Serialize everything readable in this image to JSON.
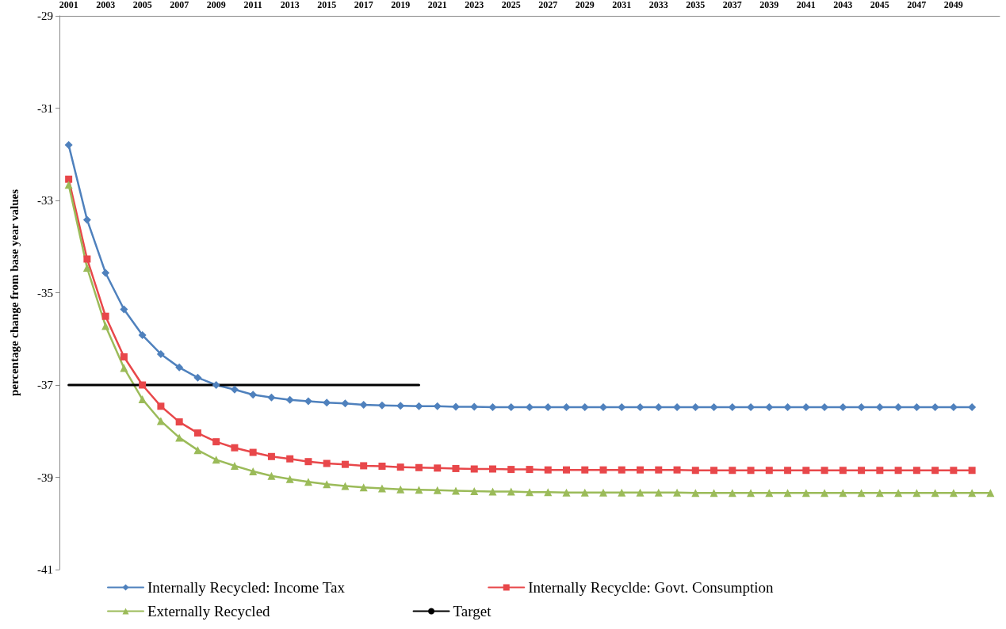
{
  "chart_data": {
    "type": "line",
    "ylabel": "percentage change from base year values",
    "categories": [
      "2001",
      null,
      "2003",
      null,
      "2005",
      null,
      "2007",
      null,
      "2009",
      null,
      "2011",
      null,
      "2013",
      null,
      "2015",
      null,
      "2017",
      null,
      "2019",
      null,
      "2021",
      null,
      "2023",
      null,
      "2025",
      null,
      "2027",
      null,
      "2029",
      null,
      "2031",
      null,
      "2033",
      null,
      "2035",
      null,
      "2037",
      null,
      "2039",
      null,
      "2041",
      null,
      "2043",
      null,
      "2045",
      null,
      "2047",
      null,
      "2049",
      null,
      null
    ],
    "ylim": [
      -41,
      -29
    ],
    "yticks": [
      -41,
      -39,
      -37,
      -35,
      -33,
      -31,
      -29
    ],
    "legend": "bottom",
    "line_style": "solid",
    "series": [
      {
        "name": "Internally Recycled: Income Tax",
        "color": "#4f81bd",
        "marker": "diamond",
        "values": [
          -31.8,
          -33.42,
          -34.57,
          -35.36,
          -35.92,
          -36.33,
          -36.62,
          -36.84,
          -37.0,
          -37.1,
          -37.21,
          -37.27,
          -37.32,
          -37.35,
          -37.38,
          -37.4,
          -37.43,
          -37.44,
          -37.45,
          -37.46,
          -37.46,
          -37.47,
          -37.47,
          -37.48,
          -37.48,
          -37.48,
          -37.48,
          -37.48,
          -37.48,
          -37.48,
          -37.48,
          -37.48,
          -37.48,
          -37.48,
          -37.48,
          -37.48,
          -37.48,
          -37.48,
          -37.48,
          -37.48,
          -37.48,
          -37.48,
          -37.48,
          -37.48,
          -37.48,
          -37.48,
          -37.48,
          -37.48,
          -37.48,
          -37.48,
          null
        ]
      },
      {
        "name": "Internally Recyclde: Govt. Consumption",
        "color": "#e8474a",
        "marker": "square",
        "values": [
          -32.54,
          -34.27,
          -35.51,
          -36.39,
          -37.0,
          -37.46,
          -37.8,
          -38.04,
          -38.23,
          -38.36,
          -38.46,
          -38.55,
          -38.6,
          -38.66,
          -38.7,
          -38.72,
          -38.75,
          -38.76,
          -38.78,
          -38.79,
          -38.8,
          -38.81,
          -38.82,
          -38.82,
          -38.83,
          -38.83,
          -38.84,
          -38.84,
          -38.84,
          -38.84,
          -38.84,
          -38.84,
          -38.84,
          -38.84,
          -38.85,
          -38.85,
          -38.85,
          -38.85,
          -38.85,
          -38.85,
          -38.85,
          -38.85,
          -38.85,
          -38.85,
          -38.85,
          -38.85,
          -38.85,
          -38.85,
          -38.85,
          -38.85,
          null
        ]
      },
      {
        "name": "Externally Recycled",
        "color": "#9bbb59",
        "marker": "triangle",
        "values": [
          -32.66,
          -34.46,
          -35.72,
          -36.63,
          -37.31,
          -37.78,
          -38.14,
          -38.41,
          -38.62,
          -38.75,
          -38.87,
          -38.97,
          -39.04,
          -39.1,
          -39.15,
          -39.19,
          -39.22,
          -39.24,
          -39.26,
          -39.27,
          -39.28,
          -39.29,
          -39.3,
          -39.31,
          -39.31,
          -39.32,
          -39.32,
          -39.33,
          -39.33,
          -39.33,
          -39.33,
          -39.33,
          -39.33,
          -39.33,
          -39.34,
          -39.34,
          -39.34,
          -39.34,
          -39.34,
          -39.34,
          -39.34,
          -39.34,
          -39.34,
          -39.34,
          -39.34,
          -39.34,
          -39.34,
          -39.34,
          -39.34,
          -39.34,
          -39.34
        ]
      },
      {
        "name": "Target",
        "color": "#000000",
        "marker": "none",
        "values": [
          -37,
          -37,
          -37,
          -37,
          -37,
          -37,
          -37,
          -37,
          -37,
          -37,
          -37,
          -37,
          -37,
          -37,
          -37,
          -37,
          -37,
          -37,
          -37,
          -37,
          null,
          null,
          null,
          null,
          null,
          null,
          null,
          null,
          null,
          null,
          null,
          null,
          null,
          null,
          null,
          null,
          null,
          null,
          null,
          null,
          null,
          null,
          null,
          null,
          null,
          null,
          null,
          null,
          null,
          null,
          null
        ]
      }
    ]
  }
}
